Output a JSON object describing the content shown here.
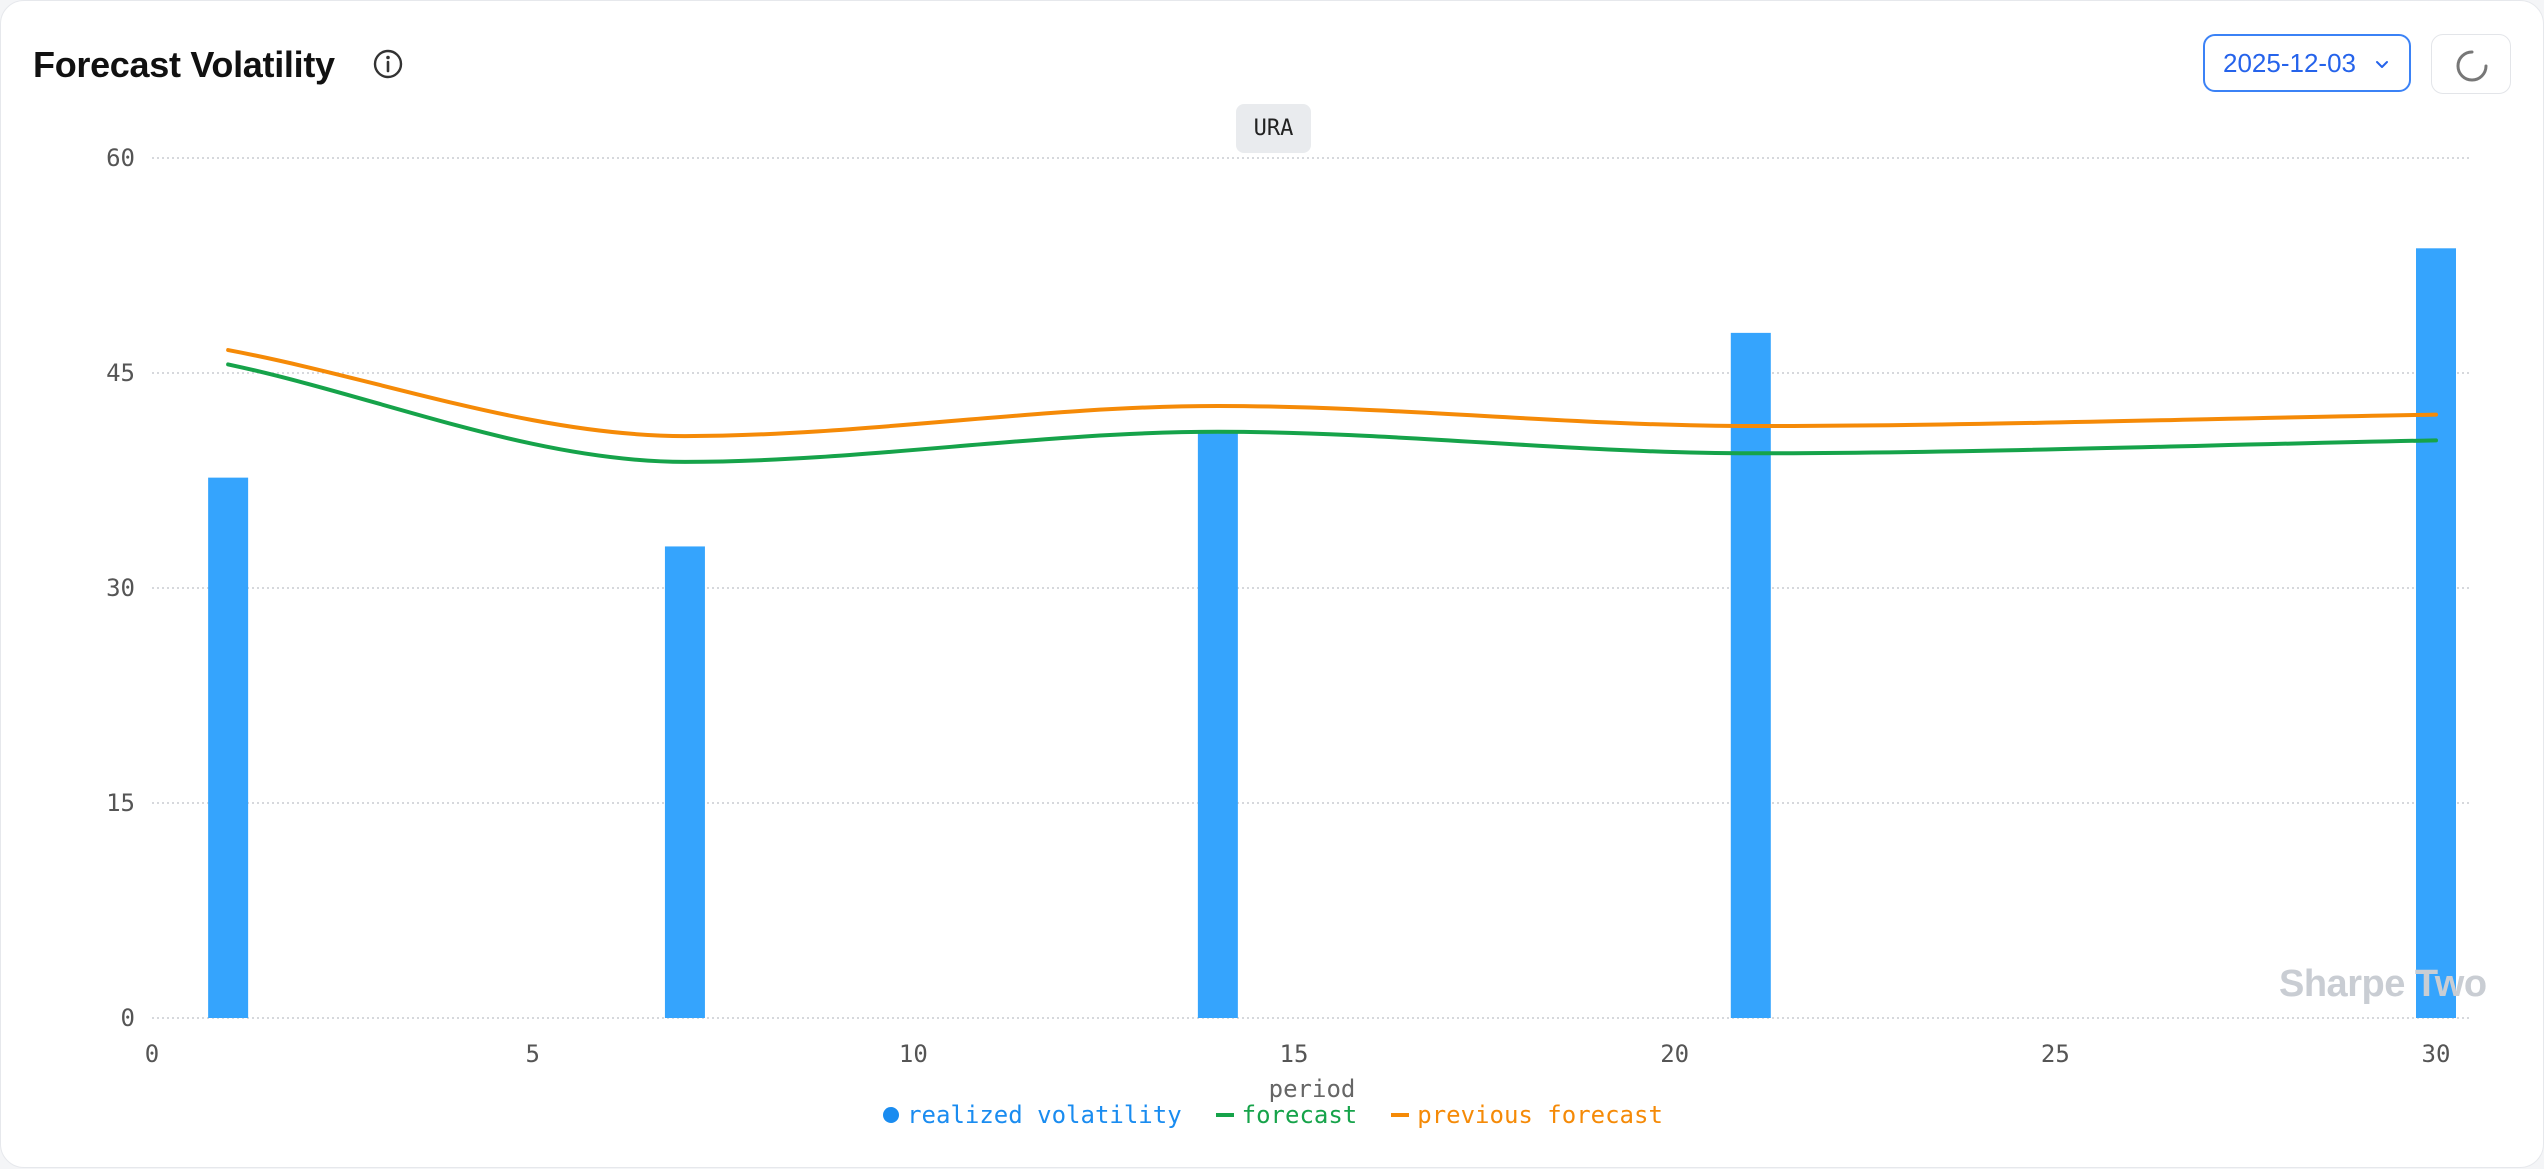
{
  "header": {
    "title": "Forecast Volatility",
    "date_value": "2025-12-03"
  },
  "icons": {
    "info": "info-circle-icon",
    "chevron": "chevron-down-icon",
    "refresh": "refresh-spinner-icon"
  },
  "symbol": "URA",
  "watermark": "Sharpe Two",
  "colors": {
    "realized": "#35a4fd",
    "forecast": "#16a34a",
    "previous": "#f58a07",
    "accent": "#3b82f6"
  },
  "chart_data": {
    "type": "bar",
    "xlabel": "period",
    "ylabel": "",
    "xlim": [
      0,
      30.5
    ],
    "ylim": [
      0,
      60
    ],
    "xticks": [
      0,
      5,
      10,
      15,
      20,
      25,
      30
    ],
    "yticks": [
      0,
      15,
      30,
      45,
      60
    ],
    "grid": true,
    "legend_position": "bottom-center",
    "series": [
      {
        "name": "realized volatility",
        "kind": "bar",
        "x": [
          1,
          7,
          14,
          21,
          30
        ],
        "values": [
          37.7,
          32.9,
          41.0,
          47.8,
          53.7
        ]
      },
      {
        "name": "forecast",
        "kind": "line",
        "x": [
          1,
          7,
          14,
          21,
          30
        ],
        "values": [
          45.6,
          38.8,
          40.9,
          39.4,
          40.3
        ]
      },
      {
        "name": "previous forecast",
        "kind": "line",
        "x": [
          1,
          7,
          14,
          21,
          30
        ],
        "values": [
          46.6,
          40.6,
          42.7,
          41.3,
          42.1
        ]
      }
    ]
  }
}
